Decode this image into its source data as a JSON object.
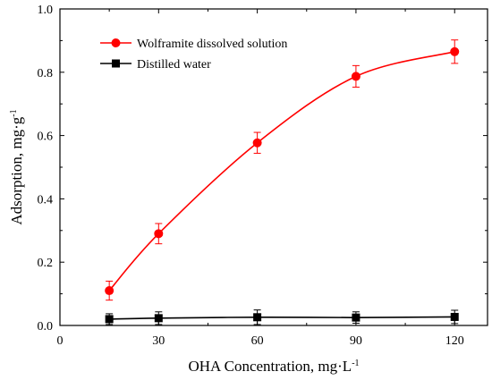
{
  "chart_data": {
    "type": "line",
    "title": "",
    "xlabel": "OHA Concentration, mg·L",
    "xlabel_sup": "-1",
    "ylabel": "Adsorption, mg·g",
    "ylabel_sup": "-1",
    "xlim": [
      0,
      130
    ],
    "ylim": [
      0,
      1.0
    ],
    "xticks": [
      0,
      30,
      60,
      90,
      120
    ],
    "xtick_labels": [
      "0",
      "30",
      "60",
      "90",
      "120"
    ],
    "yticks": [
      0,
      0.2,
      0.4,
      0.6,
      0.8,
      1.0
    ],
    "ytick_labels": [
      "0.0",
      "0.2",
      "0.4",
      "0.6",
      "0.8",
      "1.0"
    ],
    "grid": false,
    "legend_position": "top-left",
    "series": [
      {
        "name": "Wolframite dissolved solution",
        "color": "#ff0000",
        "marker": "circle",
        "x": [
          15,
          30,
          60,
          90,
          120
        ],
        "values": [
          0.11,
          0.29,
          0.577,
          0.787,
          0.865
        ],
        "error": [
          0.03,
          0.032,
          0.033,
          0.034,
          0.037
        ]
      },
      {
        "name": "Distilled water",
        "color": "#000000",
        "marker": "square",
        "x": [
          15,
          30,
          60,
          90,
          120
        ],
        "values": [
          0.02,
          0.023,
          0.026,
          0.025,
          0.027
        ],
        "error": [
          0.017,
          0.02,
          0.023,
          0.018,
          0.021
        ]
      }
    ]
  }
}
